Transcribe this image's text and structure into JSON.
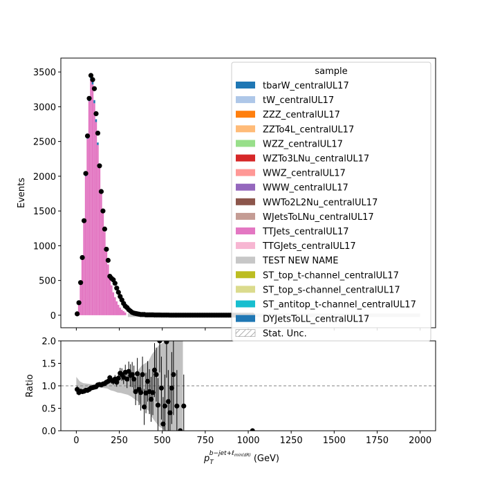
{
  "chart_data": [
    {
      "type": "bar",
      "stacked": true,
      "panel": "main",
      "title": "",
      "xlabel": "",
      "ylabel": "Events",
      "xlim": [
        -90,
        2090
      ],
      "ylim": [
        -180,
        3700
      ],
      "yticks": [
        0,
        500,
        1000,
        1500,
        2000,
        2500,
        3000,
        3500
      ],
      "xticks": [
        0,
        250,
        500,
        750,
        1000,
        1250,
        1500,
        1750,
        2000
      ],
      "bin_width": 10,
      "legend": {
        "title": "sample",
        "placement": "top-right",
        "entries": [
          {
            "label": "tbarW_centralUL17",
            "color": "#1f77b4"
          },
          {
            "label": "tW_centralUL17",
            "color": "#aec7e8"
          },
          {
            "label": "ZZZ_centralUL17",
            "color": "#ff7f0e"
          },
          {
            "label": "ZZTo4L_centralUL17",
            "color": "#ffbb78"
          },
          {
            "label": "WZZ_centralUL17",
            "color": "#98df8a"
          },
          {
            "label": "WZTo3LNu_centralUL17",
            "color": "#d62728"
          },
          {
            "label": "WWZ_centralUL17",
            "color": "#ff9896"
          },
          {
            "label": "WWW_centralUL17",
            "color": "#9467bd"
          },
          {
            "label": "WWTo2L2Nu_centralUL17",
            "color": "#8c564b"
          },
          {
            "label": "WJetsToLNu_centralUL17",
            "color": "#c49c94"
          },
          {
            "label": "TTJets_centralUL17",
            "color": "#e377c2"
          },
          {
            "label": "TTGJets_centralUL17",
            "color": "#f7b6d2"
          },
          {
            "label": "TEST NEW NAME",
            "color": "#c7c7c7"
          },
          {
            "label": "ST_top_t-channel_centralUL17",
            "color": "#bcbd22"
          },
          {
            "label": "ST_top_s-channel_centralUL17",
            "color": "#dbdb8d"
          },
          {
            "label": "ST_antitop_t-channel_centralUL17",
            "color": "#17becf"
          },
          {
            "label": "DYJetsToLL_centralUL17",
            "color": "#1f77b4"
          },
          {
            "label": "Stat. Unc.",
            "color": "#7f7f7f",
            "hatched": true
          }
        ]
      },
      "series": [
        {
          "name": "TTJets_centralUL17",
          "color": "#e377c2",
          "x": [
            0,
            10,
            20,
            30,
            40,
            50,
            60,
            70,
            80,
            90,
            100,
            110,
            120,
            130,
            140,
            150,
            160,
            170,
            180,
            190,
            200,
            210,
            220,
            230,
            240,
            250,
            260,
            270,
            280
          ],
          "values": [
            10,
            150,
            450,
            800,
            1330,
            2000,
            2540,
            3080,
            3400,
            3320,
            3050,
            2780,
            2450,
            2120,
            1750,
            1470,
            1200,
            920,
            730,
            560,
            430,
            330,
            260,
            200,
            150,
            110,
            80,
            60,
            40
          ]
        },
        {
          "name": "tbarW_centralUL17",
          "color": "#1f77b4",
          "x": [
            0,
            10,
            20,
            30,
            40,
            50,
            60,
            70,
            80,
            90,
            100,
            110,
            120,
            130,
            140,
            150
          ],
          "values": [
            2,
            8,
            15,
            25,
            35,
            45,
            50,
            55,
            55,
            50,
            45,
            40,
            35,
            30,
            25,
            20
          ]
        }
      ],
      "data_points": {
        "x": [
          5,
          15,
          25,
          35,
          45,
          55,
          65,
          75,
          85,
          95,
          105,
          115,
          125,
          135,
          145,
          155,
          165,
          175,
          185,
          195,
          205,
          215,
          225,
          235,
          245,
          255,
          265,
          275,
          285,
          295,
          305,
          315,
          325,
          335,
          345,
          355,
          365,
          375,
          385,
          395,
          405,
          415,
          425,
          435,
          445,
          455,
          465,
          475,
          485,
          495,
          505,
          515,
          525,
          535,
          545,
          555,
          565,
          575,
          585,
          595,
          605,
          615,
          625,
          635,
          645,
          655,
          665,
          675,
          685,
          695,
          705,
          715,
          725,
          735,
          745,
          755,
          765,
          775,
          785,
          795,
          805,
          815,
          825,
          835,
          845,
          855,
          865,
          875,
          885,
          895,
          905,
          915,
          925,
          935,
          945,
          955,
          965,
          975,
          985,
          995,
          1005,
          1015,
          1025
        ],
        "y": [
          20,
          180,
          470,
          830,
          1360,
          2040,
          2580,
          3120,
          3450,
          3390,
          3260,
          2900,
          2620,
          2150,
          1780,
          1500,
          1240,
          950,
          790,
          560,
          530,
          510,
          460,
          390,
          330,
          270,
          220,
          170,
          130,
          110,
          80,
          60,
          40,
          30,
          25,
          20,
          15,
          10,
          10,
          10,
          5,
          5,
          5,
          5,
          5,
          3,
          3,
          3,
          3,
          2,
          2,
          2,
          2,
          2,
          1,
          1,
          1,
          1,
          1,
          1,
          1,
          1,
          1,
          1,
          1,
          1,
          1,
          1,
          1,
          1,
          1,
          1,
          1,
          1,
          1,
          1,
          1,
          1,
          1,
          1,
          1,
          1,
          1,
          1,
          1,
          1,
          1,
          1,
          1,
          1,
          1,
          1,
          1,
          1,
          1,
          1,
          1,
          1,
          1,
          1,
          1,
          1,
          1
        ]
      },
      "uncertainty_band": {
        "x_start": 0,
        "x_end": 2000,
        "level": 0
      }
    },
    {
      "type": "scatter",
      "panel": "ratio",
      "title": "",
      "xlabel": "p_T^{b-jet+ℓ_min(dR)} (GeV)",
      "ylabel": "Ratio",
      "xlim": [
        -90,
        2090
      ],
      "ylim": [
        0,
        2
      ],
      "yticks": [
        "0.0",
        "0.5",
        "1.0",
        "1.5",
        "2.0"
      ],
      "xticks": [
        "0",
        "250",
        "500",
        "750",
        "1000",
        "1250",
        "1500",
        "1750",
        "2000"
      ],
      "reference_line": 1.0,
      "points": {
        "x": [
          5,
          15,
          25,
          35,
          45,
          55,
          65,
          75,
          85,
          95,
          105,
          115,
          125,
          135,
          145,
          155,
          165,
          175,
          185,
          195,
          205,
          215,
          225,
          235,
          245,
          255,
          265,
          275,
          285,
          295,
          305,
          315,
          325,
          335,
          345,
          355,
          365,
          375,
          385,
          395,
          405,
          415,
          425,
          435,
          445,
          455,
          465,
          475,
          485,
          495,
          505,
          515,
          525,
          535,
          545,
          555,
          565,
          585,
          605,
          625,
          1025
        ],
        "y": [
          0.92,
          0.85,
          0.88,
          0.87,
          0.88,
          0.9,
          0.9,
          0.92,
          0.95,
          0.96,
          0.97,
          0.98,
          1.02,
          1.03,
          1.02,
          1.04,
          1.05,
          1.08,
          1.1,
          1.18,
          1.12,
          1.1,
          1.15,
          1.08,
          1.17,
          1.28,
          1.25,
          1.19,
          1.3,
          1.15,
          1.32,
          1.23,
          1.25,
          1.15,
          0.87,
          1.27,
          0.92,
          0.85,
          1.25,
          0.53,
          0.84,
          1.1,
          0.87,
          0.7,
          0.85,
          1.35,
          1.25,
          0.57,
          2.0,
          0.95,
          0.15,
          0.55,
          1.98,
          0.65,
          0.4,
          0.95,
          1.25,
          0.55,
          0.0,
          0.55,
          0.0
        ],
        "yerr": [
          0.07,
          0.06,
          0.05,
          0.04,
          0.03,
          0.03,
          0.03,
          0.03,
          0.03,
          0.03,
          0.03,
          0.03,
          0.03,
          0.03,
          0.03,
          0.03,
          0.04,
          0.05,
          0.05,
          0.06,
          0.07,
          0.08,
          0.09,
          0.1,
          0.11,
          0.12,
          0.14,
          0.15,
          0.17,
          0.2,
          0.22,
          0.25,
          0.28,
          0.3,
          0.3,
          0.35,
          0.35,
          0.4,
          0.4,
          0.4,
          0.45,
          0.45,
          0.5,
          0.5,
          0.5,
          0.6,
          0.6,
          0.6,
          0.7,
          0.7,
          0.6,
          0.7,
          0.8,
          0.7,
          0.6,
          0.8,
          0.9,
          0.8,
          0.0,
          0.7,
          0.0
        ]
      },
      "mc_band": {
        "x": [
          0,
          20,
          40,
          60,
          80,
          100,
          120,
          140,
          160,
          180,
          200,
          220,
          240,
          260,
          280,
          300,
          320,
          340,
          360,
          380,
          400,
          420,
          440,
          460,
          480,
          500,
          520,
          540,
          560,
          580,
          600,
          620
        ],
        "lo": [
          0.8,
          0.9,
          0.94,
          0.95,
          0.96,
          0.97,
          0.97,
          0.96,
          0.95,
          0.94,
          0.9,
          0.88,
          0.85,
          0.84,
          0.82,
          0.8,
          0.76,
          0.7,
          0.65,
          0.55,
          0.5,
          0.45,
          0.3,
          0.2,
          0.1,
          0.05,
          0.0,
          0.0,
          0.0,
          0.0,
          0.0,
          0.0
        ],
        "hi": [
          1.2,
          1.1,
          1.06,
          1.05,
          1.04,
          1.03,
          1.03,
          1.04,
          1.05,
          1.06,
          1.1,
          1.12,
          1.15,
          1.16,
          1.18,
          1.2,
          1.24,
          1.3,
          1.35,
          1.45,
          1.5,
          1.55,
          1.7,
          1.8,
          1.9,
          1.95,
          2.0,
          2.0,
          2.0,
          2.0,
          2.0,
          2.0
        ]
      }
    }
  ]
}
